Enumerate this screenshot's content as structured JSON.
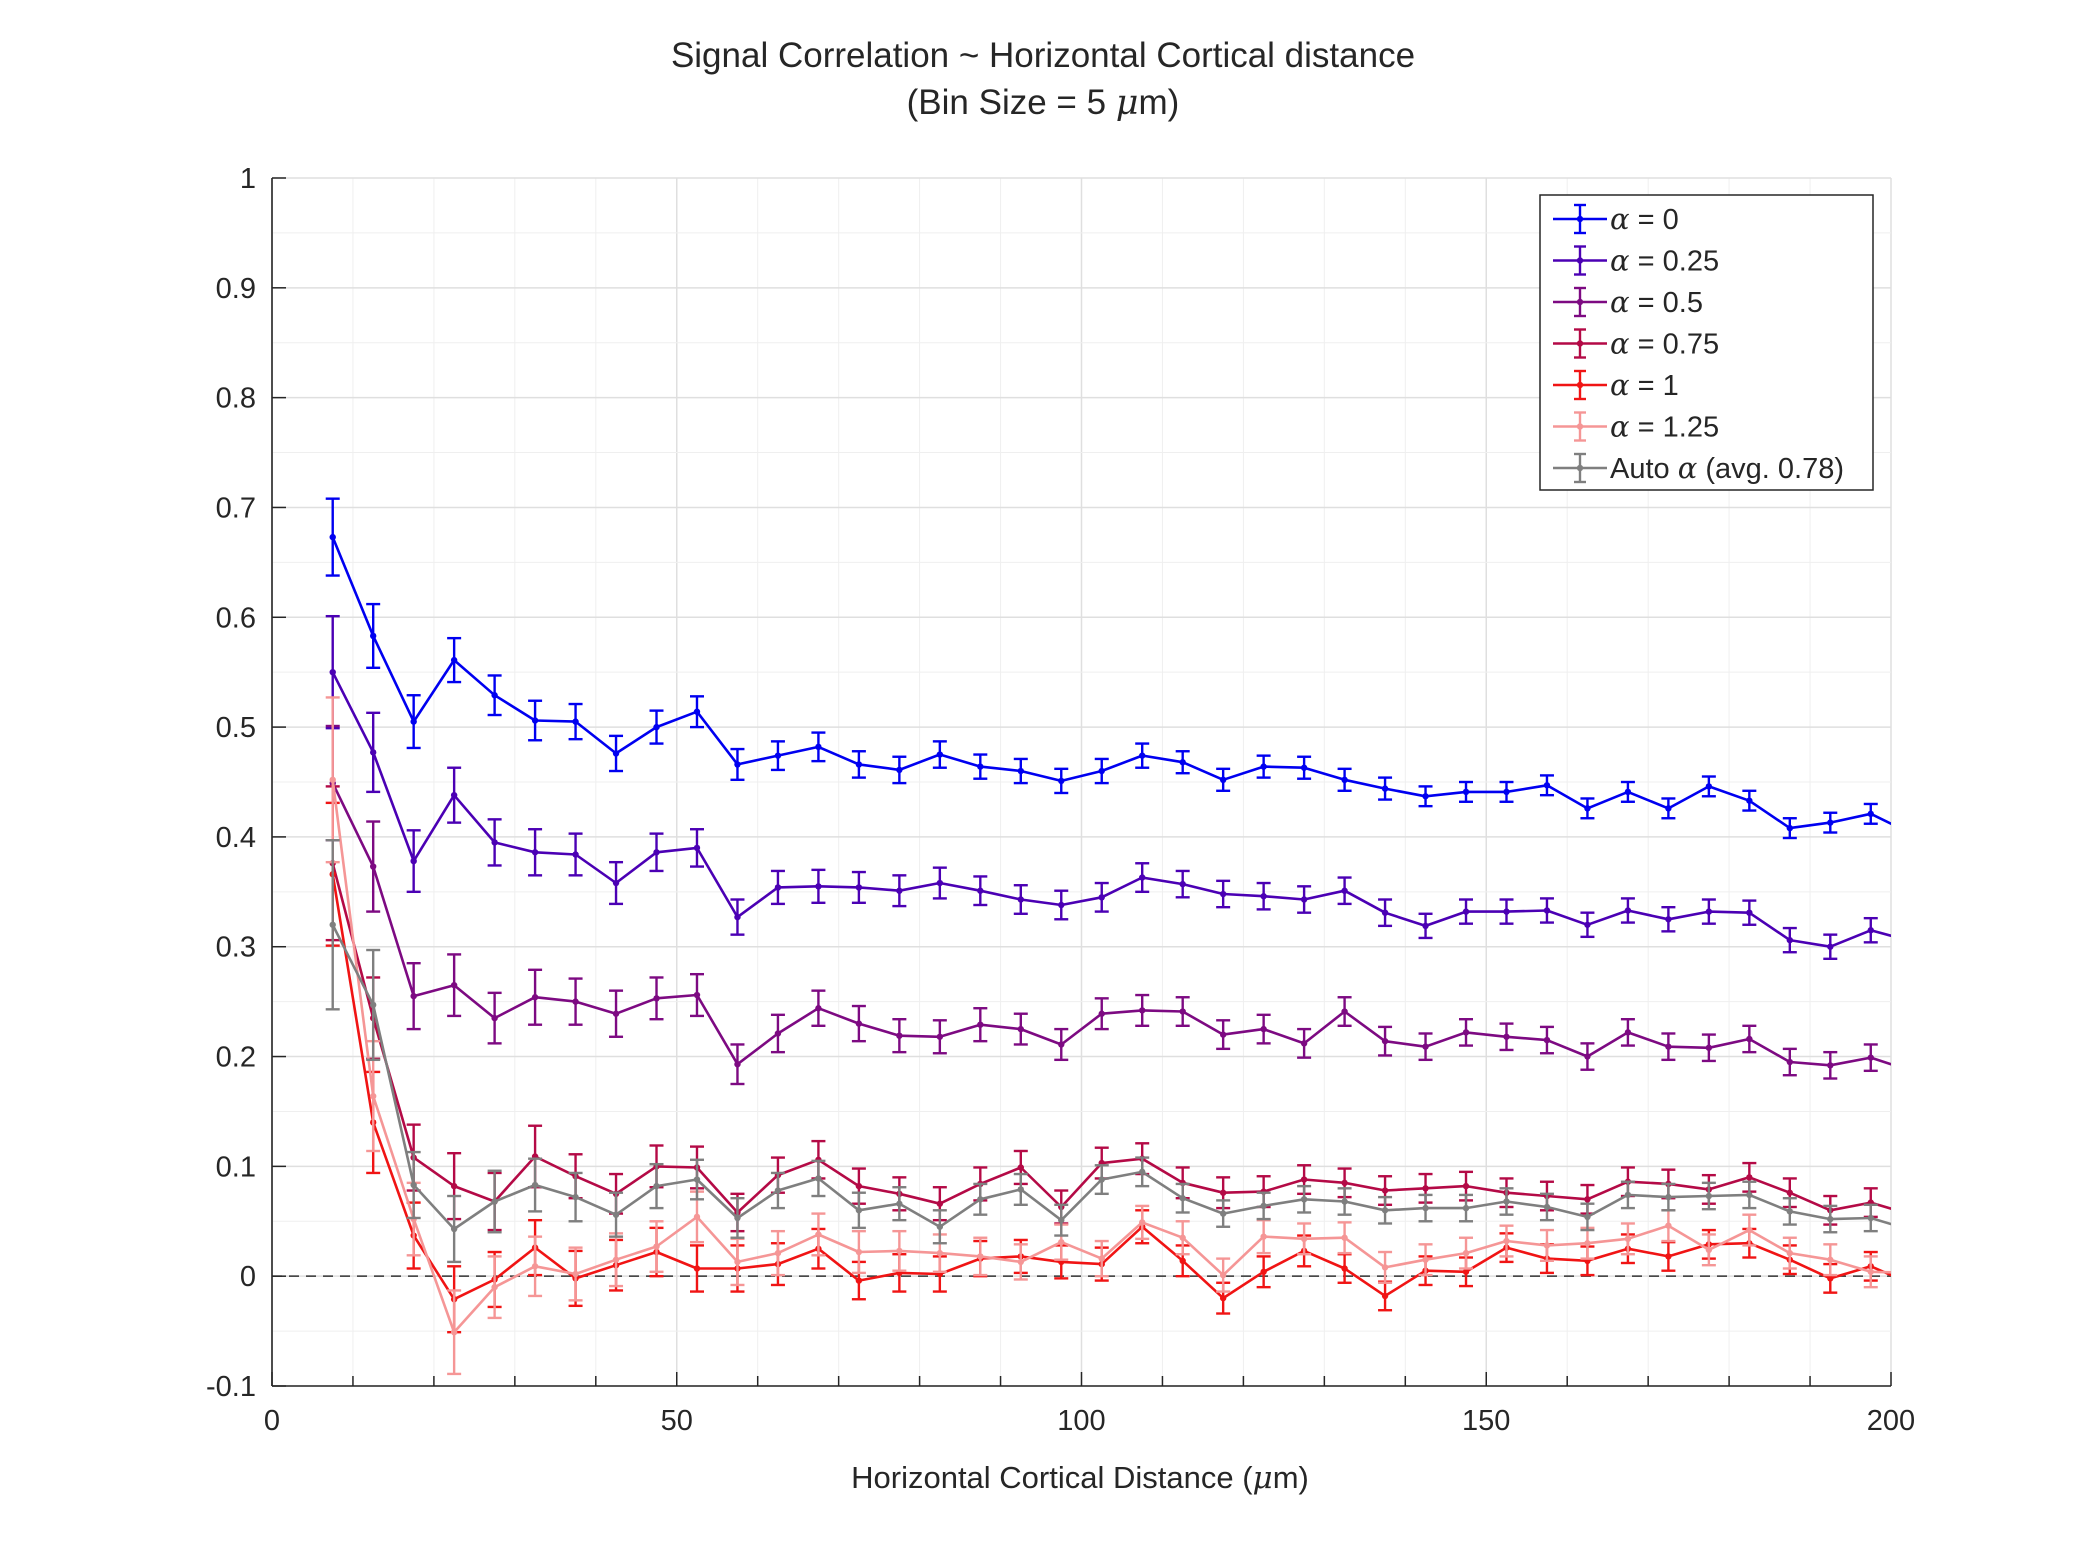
{
  "chart_data": {
    "type": "line",
    "title": "Signal Correlation ~ Horizontal Cortical distance",
    "subtitle_parts": [
      "(Bin Size = 5 ",
      "μ",
      "m)"
    ],
    "xlabel_parts": [
      "Horizontal Cortical Distance (",
      "μ",
      "m)"
    ],
    "ylabel": "",
    "xlim": [
      0,
      200
    ],
    "ylim": [
      -0.1,
      1
    ],
    "x_ticks": [
      0,
      50,
      100,
      150,
      200
    ],
    "x_tick_labels": [
      "0",
      "50",
      "100",
      "150",
      "200"
    ],
    "y_ticks": [
      -0.1,
      0,
      0.1,
      0.2,
      0.3,
      0.4,
      0.5,
      0.6,
      0.7,
      0.8,
      0.9,
      1
    ],
    "y_tick_labels": [
      "-0.1",
      "0",
      "0.1",
      "0.2",
      "0.3",
      "0.4",
      "0.5",
      "0.6",
      "0.7",
      "0.8",
      "0.9",
      "1"
    ],
    "grid": true,
    "zero_reference_line": 0,
    "legend_position": "top-right",
    "x": [
      7.5,
      12.5,
      17.5,
      22.5,
      27.5,
      32.5,
      37.5,
      42.5,
      47.5,
      52.5,
      57.5,
      62.5,
      67.5,
      72.5,
      77.5,
      82.5,
      87.5,
      92.5,
      97.5,
      102.5,
      107.5,
      112.5,
      117.5,
      122.5,
      127.5,
      132.5,
      137.5,
      142.5,
      147.5,
      152.5,
      157.5,
      162.5,
      167.5,
      172.5,
      177.5,
      182.5,
      187.5,
      192.5,
      197.5,
      202.5
    ],
    "series": [
      {
        "name_parts": [
          "α",
          " = 0"
        ],
        "color": "#0000f0",
        "values": [
          0.673,
          0.583,
          0.505,
          0.561,
          0.529,
          0.506,
          0.505,
          0.476,
          0.5,
          0.514,
          0.466,
          0.474,
          0.482,
          0.466,
          0.461,
          0.475,
          0.464,
          0.46,
          0.451,
          0.46,
          0.474,
          0.468,
          0.452,
          0.464,
          0.463,
          0.452,
          0.444,
          0.437,
          0.441,
          0.441,
          0.447,
          0.426,
          0.441,
          0.426,
          0.446,
          0.433,
          0.408,
          0.413,
          0.421,
          0.403
        ],
        "errors": [
          0.035,
          0.029,
          0.024,
          0.02,
          0.018,
          0.018,
          0.016,
          0.016,
          0.015,
          0.014,
          0.014,
          0.013,
          0.013,
          0.012,
          0.012,
          0.012,
          0.011,
          0.011,
          0.011,
          0.011,
          0.011,
          0.01,
          0.01,
          0.01,
          0.01,
          0.01,
          0.01,
          0.009,
          0.009,
          0.009,
          0.009,
          0.009,
          0.009,
          0.009,
          0.009,
          0.009,
          0.009,
          0.009,
          0.009,
          0.009
        ]
      },
      {
        "name_parts": [
          "α",
          " = 0.25"
        ],
        "color": "#4b00b4",
        "values": [
          0.55,
          0.477,
          0.378,
          0.438,
          0.395,
          0.386,
          0.384,
          0.358,
          0.386,
          0.39,
          0.327,
          0.354,
          0.355,
          0.354,
          0.351,
          0.358,
          0.351,
          0.343,
          0.338,
          0.345,
          0.363,
          0.357,
          0.348,
          0.346,
          0.343,
          0.351,
          0.331,
          0.319,
          0.332,
          0.332,
          0.333,
          0.32,
          0.333,
          0.325,
          0.332,
          0.331,
          0.306,
          0.3,
          0.315,
          0.305
        ],
        "errors": [
          0.051,
          0.036,
          0.028,
          0.025,
          0.021,
          0.021,
          0.019,
          0.019,
          0.017,
          0.017,
          0.016,
          0.015,
          0.015,
          0.014,
          0.014,
          0.014,
          0.013,
          0.013,
          0.013,
          0.013,
          0.013,
          0.012,
          0.012,
          0.012,
          0.012,
          0.012,
          0.012,
          0.011,
          0.011,
          0.011,
          0.011,
          0.011,
          0.011,
          0.011,
          0.011,
          0.011,
          0.011,
          0.011,
          0.011,
          0.011
        ]
      },
      {
        "name_parts": [
          "α",
          " = 0.5"
        ],
        "color": "#7d0a82",
        "values": [
          0.449,
          0.373,
          0.255,
          0.265,
          0.235,
          0.254,
          0.25,
          0.239,
          0.253,
          0.256,
          0.193,
          0.221,
          0.244,
          0.23,
          0.219,
          0.218,
          0.229,
          0.225,
          0.211,
          0.239,
          0.242,
          0.241,
          0.22,
          0.225,
          0.212,
          0.241,
          0.214,
          0.209,
          0.222,
          0.218,
          0.215,
          0.2,
          0.222,
          0.209,
          0.208,
          0.216,
          0.195,
          0.192,
          0.199,
          0.187
        ],
        "errors": [
          0.052,
          0.041,
          0.03,
          0.028,
          0.023,
          0.025,
          0.021,
          0.021,
          0.019,
          0.019,
          0.018,
          0.017,
          0.016,
          0.016,
          0.015,
          0.015,
          0.015,
          0.014,
          0.014,
          0.014,
          0.014,
          0.013,
          0.013,
          0.013,
          0.013,
          0.013,
          0.013,
          0.012,
          0.012,
          0.012,
          0.012,
          0.012,
          0.012,
          0.012,
          0.012,
          0.012,
          0.012,
          0.012,
          0.012,
          0.012
        ]
      },
      {
        "name_parts": [
          "α",
          " = 0.75"
        ],
        "color": "#b40a46",
        "values": [
          0.376,
          0.235,
          0.108,
          0.082,
          0.068,
          0.109,
          0.091,
          0.075,
          0.1,
          0.099,
          0.058,
          0.092,
          0.106,
          0.082,
          0.075,
          0.066,
          0.084,
          0.099,
          0.063,
          0.103,
          0.107,
          0.085,
          0.076,
          0.077,
          0.088,
          0.085,
          0.078,
          0.08,
          0.082,
          0.076,
          0.073,
          0.07,
          0.086,
          0.084,
          0.079,
          0.09,
          0.076,
          0.06,
          0.067,
          0.056
        ],
        "errors": [
          0.07,
          0.037,
          0.03,
          0.03,
          0.026,
          0.028,
          0.02,
          0.018,
          0.019,
          0.019,
          0.017,
          0.016,
          0.017,
          0.016,
          0.015,
          0.015,
          0.015,
          0.015,
          0.015,
          0.014,
          0.014,
          0.014,
          0.014,
          0.014,
          0.013,
          0.013,
          0.013,
          0.013,
          0.013,
          0.013,
          0.013,
          0.013,
          0.013,
          0.013,
          0.013,
          0.013,
          0.013,
          0.013,
          0.013,
          0.013
        ]
      },
      {
        "name_parts": [
          "α",
          " = 1"
        ],
        "color": "#f01414",
        "values": [
          0.366,
          0.14,
          0.037,
          -0.021,
          -0.003,
          0.026,
          -0.002,
          0.01,
          0.022,
          0.007,
          0.007,
          0.011,
          0.025,
          -0.004,
          0.003,
          0.002,
          0.016,
          0.018,
          0.013,
          0.011,
          0.045,
          0.014,
          -0.02,
          0.004,
          0.023,
          0.007,
          -0.018,
          0.005,
          0.004,
          0.026,
          0.016,
          0.014,
          0.025,
          0.018,
          0.029,
          0.03,
          0.015,
          -0.002,
          0.009,
          -0.007
        ],
        "errors": [
          0.065,
          0.046,
          0.03,
          0.03,
          0.025,
          0.025,
          0.025,
          0.023,
          0.022,
          0.021,
          0.021,
          0.019,
          0.018,
          0.017,
          0.017,
          0.016,
          0.016,
          0.015,
          0.015,
          0.015,
          0.015,
          0.014,
          0.014,
          0.014,
          0.014,
          0.013,
          0.013,
          0.013,
          0.013,
          0.013,
          0.013,
          0.013,
          0.013,
          0.013,
          0.013,
          0.013,
          0.013,
          0.013,
          0.013,
          0.013
        ]
      },
      {
        "name_parts": [
          "α",
          " = 1.25"
        ],
        "color": "#f59696",
        "values": [
          0.452,
          0.164,
          0.052,
          -0.051,
          -0.01,
          0.009,
          0.002,
          0.015,
          0.027,
          0.054,
          0.013,
          0.021,
          0.038,
          0.022,
          0.023,
          0.021,
          0.018,
          0.013,
          0.031,
          0.016,
          0.049,
          0.035,
          0.001,
          0.036,
          0.034,
          0.035,
          0.008,
          0.015,
          0.021,
          0.032,
          0.028,
          0.03,
          0.034,
          0.046,
          0.024,
          0.042,
          0.021,
          0.015,
          0.004,
          0.003
        ],
        "errors": [
          0.075,
          0.05,
          0.033,
          0.038,
          0.028,
          0.027,
          0.024,
          0.024,
          0.023,
          0.023,
          0.021,
          0.02,
          0.019,
          0.019,
          0.018,
          0.017,
          0.017,
          0.016,
          0.016,
          0.016,
          0.015,
          0.015,
          0.015,
          0.015,
          0.014,
          0.014,
          0.014,
          0.014,
          0.014,
          0.014,
          0.014,
          0.014,
          0.014,
          0.014,
          0.014,
          0.014,
          0.014,
          0.014,
          0.014,
          0.014
        ]
      },
      {
        "name_parts": [
          "Auto ",
          "α",
          " (avg. 0.78)"
        ],
        "color": "#7f7f7f",
        "values": [
          0.32,
          0.247,
          0.083,
          0.043,
          0.068,
          0.083,
          0.072,
          0.056,
          0.082,
          0.088,
          0.053,
          0.078,
          0.089,
          0.06,
          0.066,
          0.045,
          0.07,
          0.079,
          0.051,
          0.088,
          0.095,
          0.071,
          0.057,
          0.064,
          0.07,
          0.068,
          0.06,
          0.062,
          0.062,
          0.068,
          0.063,
          0.054,
          0.074,
          0.072,
          0.073,
          0.074,
          0.059,
          0.052,
          0.053,
          0.042
        ],
        "errors": [
          0.077,
          0.05,
          0.03,
          0.03,
          0.028,
          0.024,
          0.022,
          0.02,
          0.02,
          0.018,
          0.018,
          0.016,
          0.016,
          0.016,
          0.015,
          0.015,
          0.014,
          0.014,
          0.014,
          0.013,
          0.013,
          0.013,
          0.012,
          0.012,
          0.012,
          0.012,
          0.012,
          0.012,
          0.012,
          0.012,
          0.012,
          0.012,
          0.012,
          0.012,
          0.012,
          0.012,
          0.012,
          0.012,
          0.012,
          0.012
        ]
      }
    ]
  }
}
